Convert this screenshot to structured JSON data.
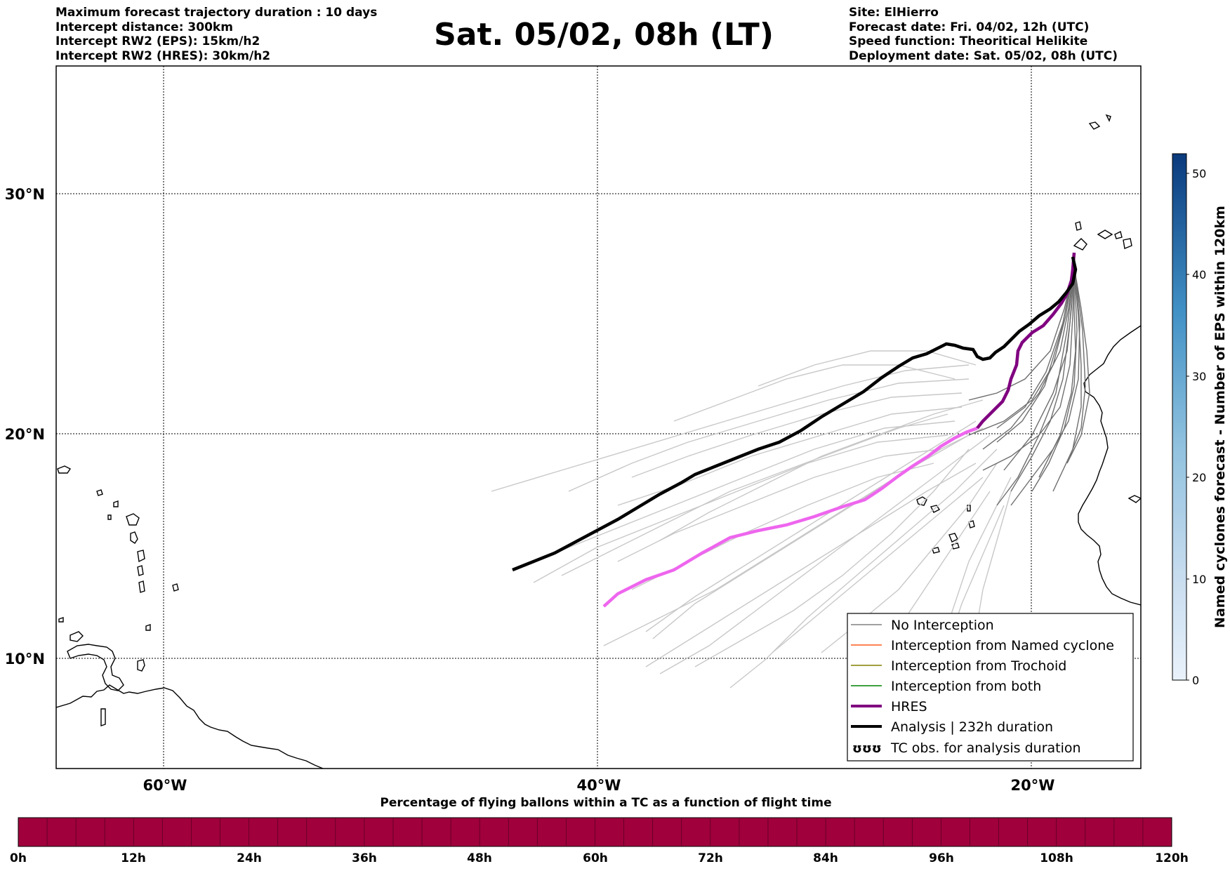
{
  "header": {
    "left_lines": [
      "Maximum forecast trajectory duration : 10 days",
      "Intercept distance: 300km",
      "Intercept RW2 (EPS):  15km/h2",
      "Intercept RW2 (HRES): 30km/h2"
    ],
    "title": "Sat. 05/02, 08h (LT)",
    "right_lines": [
      "Site: ElHierro",
      "Forecast date: Fri. 04/02, 12h (UTC)",
      "Speed function: Theoritical Helikite",
      "Deployment date: Sat. 05/02, 08h (UTC)"
    ]
  },
  "map": {
    "lat_labels": [
      "30°N",
      "20°N",
      "10°N"
    ],
    "lon_labels": [
      "60°W",
      "40°W",
      "20°W"
    ],
    "colors": {
      "eps_no_interception": "#6e6e6e",
      "eps_faded": "#c8c8c8",
      "hres_recent": "#800080",
      "hres_faded": "#ee66ee",
      "analysis": "#000000"
    }
  },
  "legend": {
    "items": [
      {
        "label": "No Interception",
        "color": "#808080"
      },
      {
        "label": "Interception from Named cyclone",
        "color": "#ff5a1f"
      },
      {
        "label": "Interception from Trochoid",
        "color": "#808000"
      },
      {
        "label": "Interception from both",
        "color": "#008000"
      },
      {
        "label": "HRES",
        "color": "#800080"
      },
      {
        "label": "Analysis | 232h duration",
        "color": "#000000"
      },
      {
        "label": "TC obs. for analysis duration",
        "color": "#000000"
      }
    ],
    "tc_symbol": "ʊʊʊ"
  },
  "colorbar_right": {
    "label": "Named cyclones forecast - Number of EPS within 120km",
    "ticks": [
      "50",
      "40",
      "30",
      "20",
      "10",
      "0"
    ]
  },
  "colorbar_bottom": {
    "title": "Percentage of flying ballons within a TC as a function of flight time",
    "color": "#a0003c",
    "ticks": [
      "0h",
      "12h",
      "24h",
      "36h",
      "48h",
      "60h",
      "72h",
      "84h",
      "96h",
      "108h",
      "120h"
    ]
  }
}
